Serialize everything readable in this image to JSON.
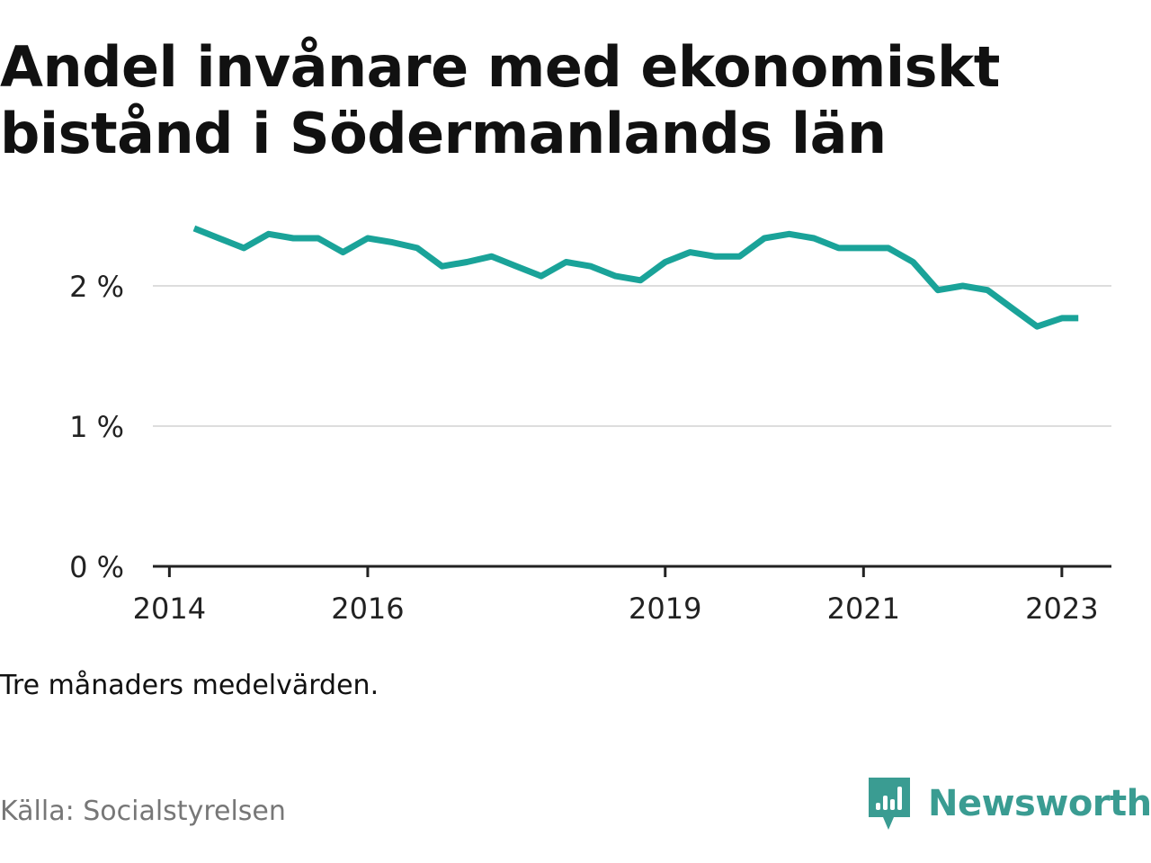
{
  "title": "Andel invånare med ekonomiskt bistånd i Södermanlands län",
  "note": "Tre månaders medelvärden.",
  "source": "Källa: Socialstyrelsen",
  "brand": {
    "name": "Newsworthy",
    "icon": "newsworthy-logo-icon",
    "color": "#3a9c92"
  },
  "colors": {
    "line": "#1aa399",
    "grid": "#dddddd",
    "axis": "#222222"
  },
  "chart_data": {
    "type": "line",
    "title": "Andel invånare med ekonomiskt bistånd i Södermanlands län",
    "xlabel": "",
    "ylabel": "",
    "ylim": [
      0,
      2.5
    ],
    "grid": true,
    "yticks": [
      {
        "value": 0,
        "label": "0 %"
      },
      {
        "value": 1,
        "label": "1 %"
      },
      {
        "value": 2,
        "label": "2 %"
      }
    ],
    "xticks": [
      {
        "value": "2014-01",
        "label": "2014"
      },
      {
        "value": "2016-01",
        "label": "2016"
      },
      {
        "value": "2019-01",
        "label": "2019"
      },
      {
        "value": "2021-01",
        "label": "2021"
      },
      {
        "value": "2023-01",
        "label": "2023"
      }
    ],
    "xlim": [
      "2013-11",
      "2023-07"
    ],
    "series": [
      {
        "x": [
          "2014-04",
          "2014-07",
          "2014-10",
          "2015-01",
          "2015-04",
          "2015-07",
          "2015-10",
          "2016-01",
          "2016-04",
          "2016-07",
          "2016-10",
          "2017-01",
          "2017-04",
          "2017-07",
          "2017-10",
          "2018-01",
          "2018-04",
          "2018-07",
          "2018-10",
          "2019-01",
          "2019-04",
          "2019-07",
          "2019-10",
          "2020-01",
          "2020-04",
          "2020-07",
          "2020-10",
          "2021-01",
          "2021-04",
          "2021-07",
          "2021-10",
          "2022-01",
          "2022-04",
          "2022-07",
          "2022-10",
          "2023-01",
          "2023-03"
        ],
        "values": [
          2.41,
          2.34,
          2.27,
          2.37,
          2.34,
          2.34,
          2.24,
          2.34,
          2.31,
          2.27,
          2.14,
          2.17,
          2.21,
          2.14,
          2.07,
          2.17,
          2.14,
          2.07,
          2.04,
          2.17,
          2.24,
          2.21,
          2.21,
          2.34,
          2.37,
          2.34,
          2.27,
          2.27,
          2.27,
          2.17,
          1.97,
          2.0,
          1.97,
          1.84,
          1.71,
          1.77,
          1.77
        ]
      }
    ]
  }
}
